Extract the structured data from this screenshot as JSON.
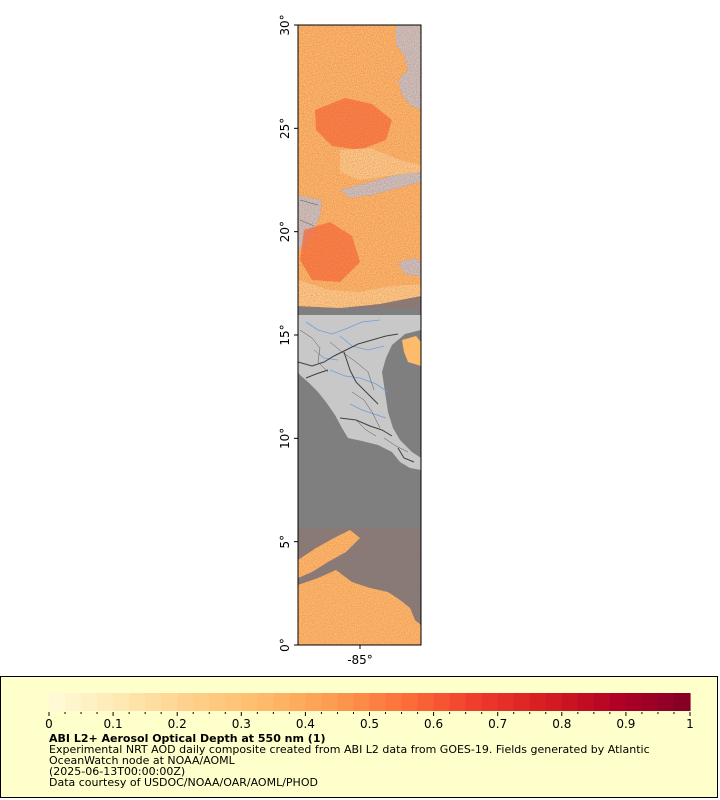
{
  "colors": {
    "ocean": "#7f7f7f",
    "land": "#c8c8c8",
    "country_border": "#404040",
    "state_border": "#555555",
    "river": "#6f9fd8",
    "legend_background": "#ffffcc",
    "colorbar": [
      "#fffbd9",
      "#fee9b2",
      "#fed08a",
      "#febb6b",
      "#fd9b50",
      "#fc6f3a",
      "#ef3c2c",
      "#d41c22",
      "#b10026",
      "#800026"
    ]
  },
  "map": {
    "lat_range": [
      0,
      30
    ],
    "lon_center_tick": "-85°",
    "lat_ticks": [
      {
        "value": 0,
        "label": "0°"
      },
      {
        "value": 5,
        "label": "5°"
      },
      {
        "value": 10,
        "label": "10°"
      },
      {
        "value": 15,
        "label": "15°"
      },
      {
        "value": 20,
        "label": "20°"
      },
      {
        "value": 25,
        "label": "25°"
      },
      {
        "value": 30,
        "label": "30°"
      }
    ]
  },
  "legend": {
    "ticks": [
      "0",
      "0.1",
      "0.2",
      "0.3",
      "0.4",
      "0.5",
      "0.6",
      "0.7",
      "0.8",
      "0.9",
      "1"
    ],
    "title": "ABI L2+ Aerosol Optical Depth at 550 nm (1)",
    "line1": "Experimental NRT AOD daily composite created from ABI L2 data from GOES-19. Fields generated by Atlantic",
    "line2": "OceanWatch node at NOAA/AOML",
    "line3": "(2025-06-13T00:00:00Z)",
    "line4": "Data courtesy of USDOC/NOAA/OAR/AOML/PHOD"
  }
}
